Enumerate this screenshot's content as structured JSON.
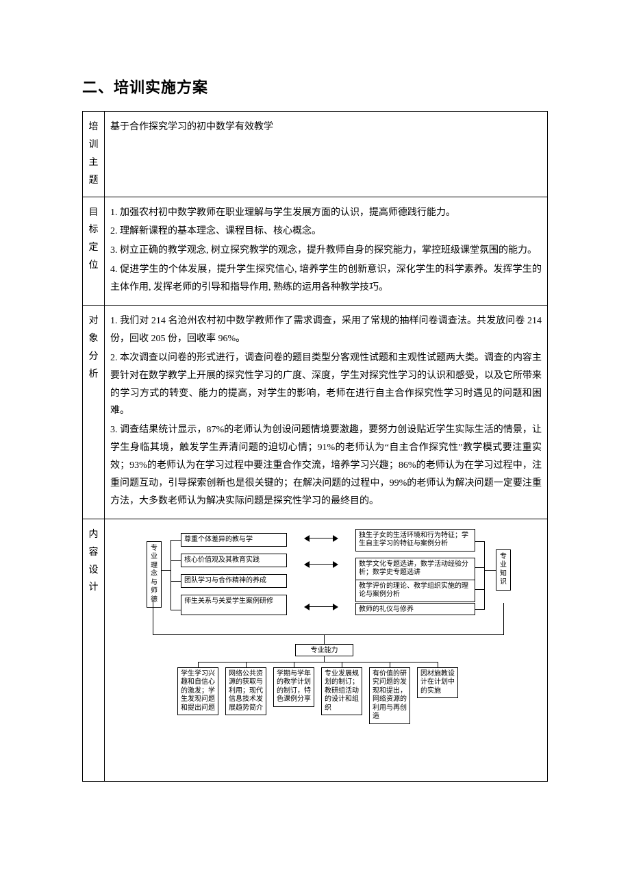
{
  "title": "二、培训实施方案",
  "rows": {
    "r1": {
      "label": "培训主题",
      "p": [
        "基于合作探究学习的初中数学有效教学"
      ]
    },
    "r2": {
      "label": "目标定位",
      "p": [
        "1.  加强农村初中数学教师在职业理解与学生发展方面的认识，提高师德践行能力。",
        "2.  理解新课程的基本理念、课程目标、核心概念。",
        "3. 树立正确的教学观念, 树立探究教学的观念，提升教师自身的探究能力，掌控班级课堂氛围的能力。",
        "4. 促进学生的个体发展，提升学生探究信心, 培养学生的创新意识，深化学生的科学素养。发挥学生的主体作用, 发挥老师的引导和指导作用, 熟练的运用各种教学技巧。"
      ]
    },
    "r3": {
      "label": "对象分析",
      "p": [
        "1.  我们对 214 名沧州农村初中数学教师作了需求调查，采用了常规的抽样问卷调查法。共发放问卷 214 份，回收 205 份，回收率 96%。",
        "2. 本次调查以问卷的形式进行，调查问卷的题目类型分客观性试题和主观性试题两大类。调查的内容主要针对在数学教学上开展的探究性学习的广度、深度，学生对探究性学习的认识和感受，以及它所带来的学习方式的转变、能力的提高，对学生的影响，老师在进行自主合作探究性学习时遇见的问题和困难。",
        "3. 调查结果统计显示，87%的老师认为创设问题情境要激趣，要努力创设贴近学生实际生活的情景，让学生身临其境，触发学生弄清问题的迫切心情；91%的老师认为“自主合作探究性”教学模式要注重实效；93%的老师认为在学习过程中要注重合作交流，培养学习兴趣；86%的老师认为在学习过程中，注重问题互动，引导探索创新也是很关键的；在解决问题的过程中，99%的老师认为解决问题一定要注重方法，大多数老师认为解决实际问题是探究性学习的最终目的。"
      ]
    },
    "r4": {
      "label": "内容设计"
    }
  },
  "diagram": {
    "ul": "专业理念与师德",
    "ur": "专业知识",
    "left": [
      "尊重个体差异的教与学",
      "核心价值观及其教育实践",
      "团队学习与合作精神的养成",
      "师生关系与关爱学生案例研修"
    ],
    "right": [
      "独生子女的生活环境和行为特征；学生自主学习的特征与案例分析",
      "数学文化专题选讲，数学活动经验分析；数学史专题选讲",
      "教学评价的理论、教学组织实施的理论与案例分析",
      "教师的礼仪与修养"
    ],
    "mid": "专业能力",
    "bottom": [
      "学生学习兴趣和自信心的激发；学生发现问题和提出问题",
      "网络公共资源的获取与利用；现代信息技术发展趋势简介",
      "学期与学年的教学计划的制订，特色课例分享",
      "专业发展规划的制订；教研组活动的设计和组织",
      "有价值的研究问题的发现和提出，网络资源的利用与再创造",
      "因材施教设计在计划中的实施"
    ]
  }
}
